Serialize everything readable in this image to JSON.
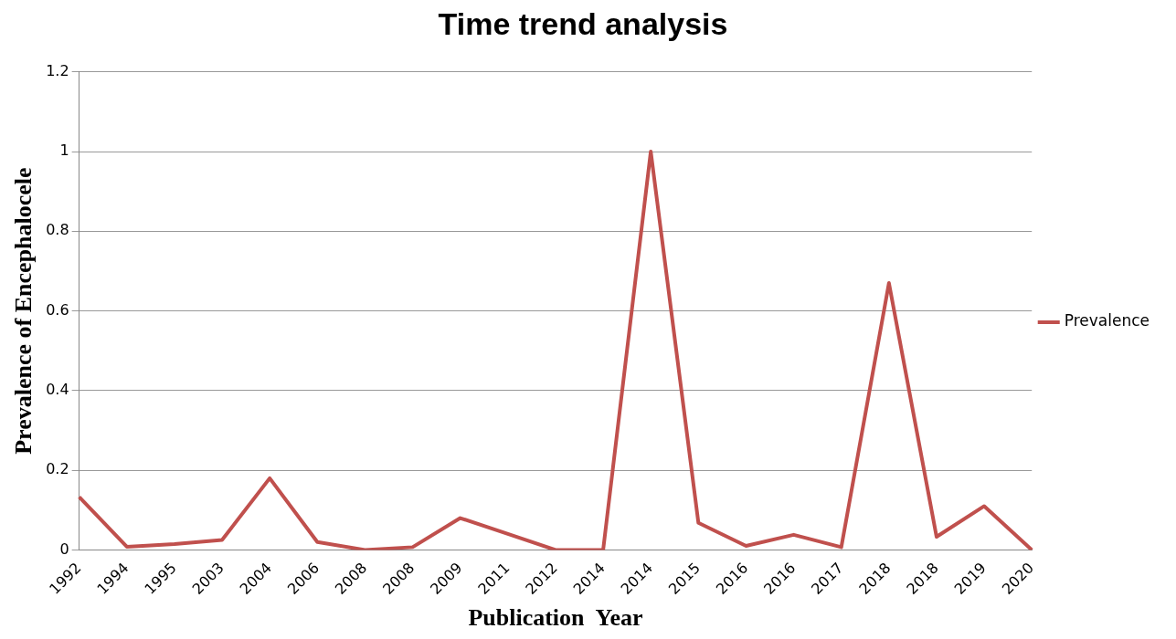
{
  "chart_data": {
    "type": "line",
    "title": "Time trend analysis",
    "xlabel": "Publication  Year",
    "ylabel": "Prevalence of Encephalocele",
    "categories": [
      "1992",
      "1994",
      "1995",
      "2003",
      "2004",
      "2006",
      "2008",
      "2008",
      "2009",
      "2011",
      "2012",
      "2014",
      "2014",
      "2015",
      "2016",
      "2016",
      "2017",
      "2018",
      "2018",
      "2019",
      "2020"
    ],
    "series": [
      {
        "name": "Prevalence",
        "color": "#c0504d",
        "values": [
          0.133,
          0.008,
          0.015,
          0.025,
          0.18,
          0.02,
          0,
          0.007,
          0.08,
          0.04,
          0,
          0,
          1,
          0.068,
          0.01,
          0.038,
          0.007,
          0.67,
          0.033,
          0.11,
          0
        ]
      }
    ],
    "ylim": [
      0,
      1.2
    ],
    "yticks": [
      0,
      0.2,
      0.4,
      0.6,
      0.8,
      1,
      1.2
    ],
    "grid": "y",
    "legend": "right",
    "marker": "none",
    "line_style": "solid"
  }
}
